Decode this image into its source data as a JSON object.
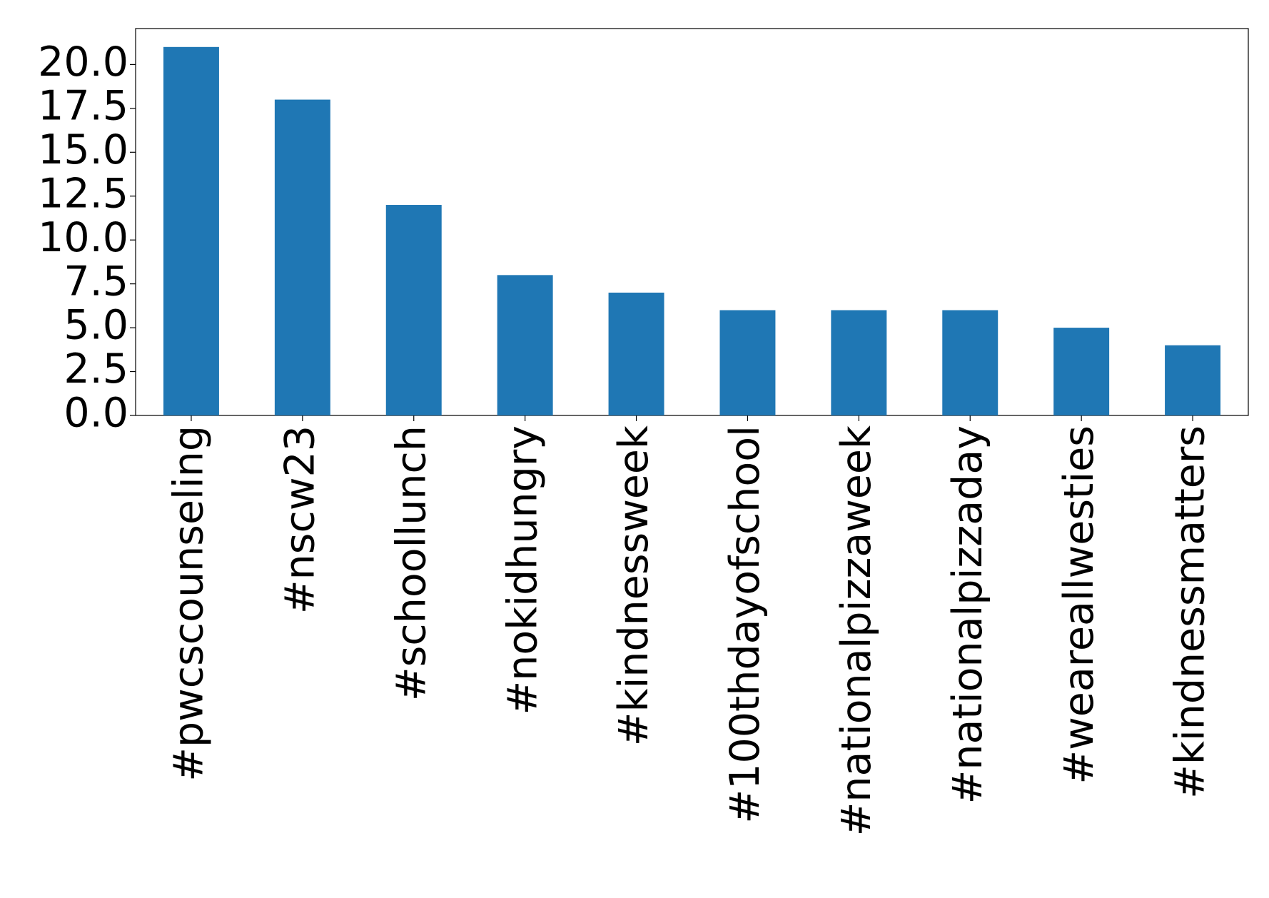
{
  "chart_data": {
    "type": "bar",
    "categories": [
      "#pwcscounseling",
      "#nscw23",
      "#schoollunch",
      "#nokidhungry",
      "#kindnessweek",
      "#100thdayofschool",
      "#nationalpizzaweek",
      "#nationalpizzaday",
      "#weareallwesties",
      "#kindnessmatters"
    ],
    "values": [
      21,
      18,
      12,
      8,
      7,
      6,
      6,
      6,
      5,
      4
    ],
    "color": "#1f77b4",
    "ylim": [
      0,
      22.05
    ],
    "yticks": [
      {
        "value": 0,
        "label": "0.0"
      },
      {
        "value": 2.5,
        "label": "2.5"
      },
      {
        "value": 5,
        "label": "5.0"
      },
      {
        "value": 7.5,
        "label": "7.5"
      },
      {
        "value": 10,
        "label": "10.0"
      },
      {
        "value": 12.5,
        "label": "12.5"
      },
      {
        "value": 15,
        "label": "15.0"
      },
      {
        "value": 17.5,
        "label": "17.5"
      },
      {
        "value": 20,
        "label": "20.0"
      }
    ],
    "grid": false
  }
}
